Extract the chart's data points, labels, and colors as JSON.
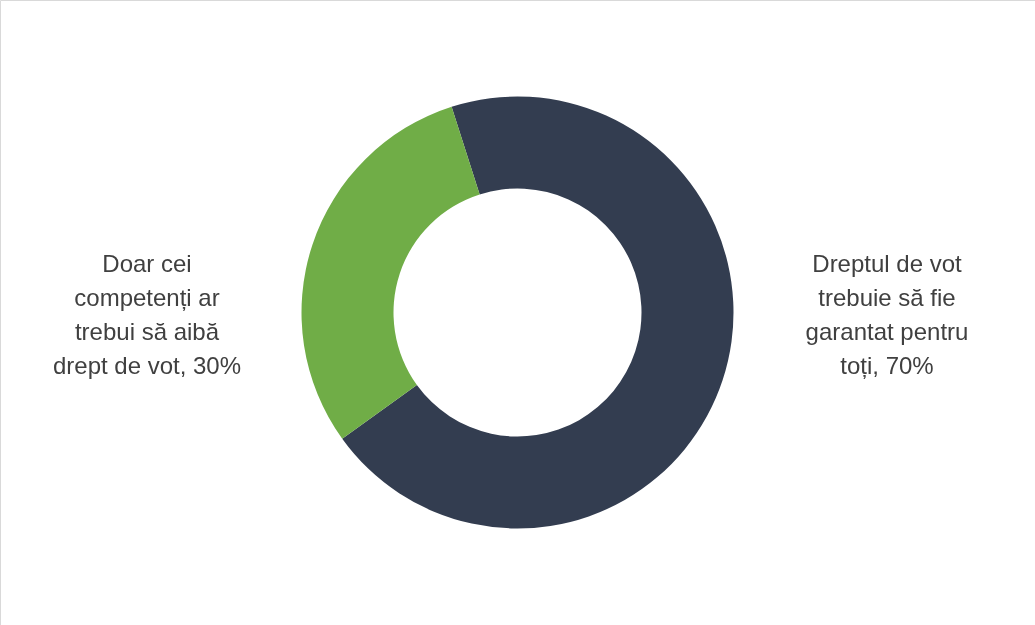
{
  "chart_data": {
    "type": "donut",
    "categories": [
      "Dreptul de vot trebuie să fie garantat pentru toți",
      "Doar cei competenți ar trebui să aibă drept de vot"
    ],
    "values": [
      70,
      30
    ],
    "value_labels": [
      "70%",
      "30%"
    ],
    "colors": [
      "#333d50",
      "#70ad47"
    ]
  }
}
